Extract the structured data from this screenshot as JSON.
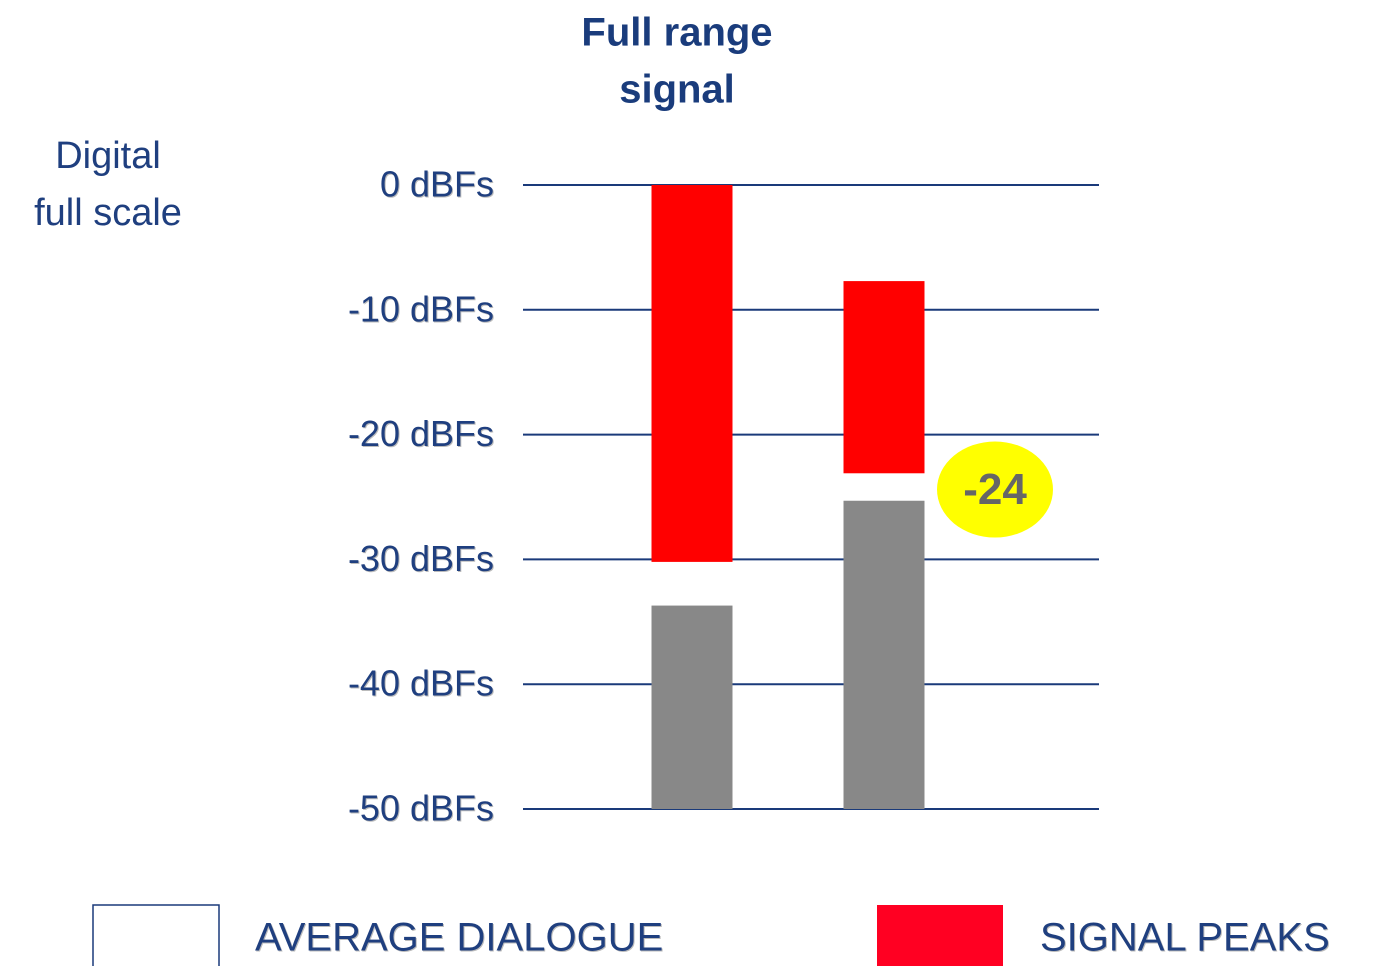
{
  "chart_data": {
    "type": "floating-bar",
    "title": "Full range signal",
    "ylabel": "Digital full scale",
    "categories": [
      null,
      null
    ],
    "ylim": [
      -50,
      0
    ],
    "yticks": [
      {
        "value": 0,
        "label": "0 dBFs"
      },
      {
        "value": -10,
        "label": "-10 dBFs"
      },
      {
        "value": -20,
        "label": "-20 dBFs"
      },
      {
        "value": -30,
        "label": "-30 dBFs"
      },
      {
        "value": -40,
        "label": "-40 dBFs"
      },
      {
        "value": -50,
        "label": "-50 dBFs"
      }
    ],
    "grid": true,
    "series": [
      {
        "name": "AVERAGE DIALOGUE",
        "color": "#888888",
        "legend_color": "#ffffff",
        "values": [
          [
            -33.7,
            -50
          ],
          [
            -25.3,
            -50
          ]
        ]
      },
      {
        "name": "SIGNAL PEAKS",
        "color": "#ff0000",
        "legend_color": "#ff0022",
        "values": [
          [
            0,
            -30.2
          ],
          [
            -7.7,
            -23.1
          ]
        ]
      }
    ],
    "annotations": [
      {
        "value": -24,
        "label": "-24",
        "color": "#ffff00"
      }
    ]
  }
}
